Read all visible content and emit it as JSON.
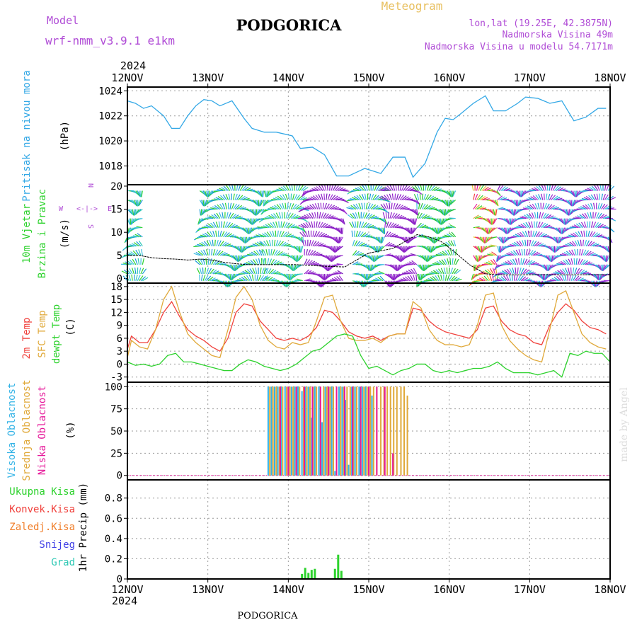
{
  "header": {
    "model_label": "Model",
    "model_name": "wrf-nmm_v3.9.1 e1km",
    "city": "PODGORICA",
    "meteogram_label": "Meteogram",
    "coords": "lon,lat (19.25E, 42.3875N)",
    "altitude": "Nadmorska Visina 49m",
    "model_altitude": "Nadmorska Visina u modelu 54.7171m"
  },
  "footer": {
    "city": "PODGORICA",
    "watermark": "made by Angel"
  },
  "colors": {
    "pressure": "#33a8e6",
    "t2m": "#f0413c",
    "sfc": "#e0a93a",
    "dewpt": "#2dd22d",
    "high_cloud": "#33b3e6",
    "mid_cloud": "#e0a93a",
    "low_cloud": "#e6199a",
    "total_precip": "#2dd22d",
    "conv_precip": "#f0413c",
    "frz_precip": "#f07d28",
    "snow": "#4040e6",
    "hail": "#2dc8b4",
    "wind_speed": "#000000",
    "purple_text": "#b04cd6",
    "meteogram_text": "#e8c060"
  },
  "xaxis": {
    "year_top": "2024",
    "year_bottom": "2024",
    "ticks": [
      "12NOV",
      "13NOV",
      "14NOV",
      "15NOV",
      "16NOV",
      "17NOV",
      "18NOV"
    ]
  },
  "chart_data": [
    {
      "type": "line",
      "ylabel": [
        "Pritisak na nivou mora",
        "(hPa)"
      ],
      "ylim": [
        1016.5,
        1024.3
      ],
      "yticks": [
        1018,
        1020,
        1022,
        1024
      ],
      "xlim": [
        0,
        6
      ],
      "series": [
        {
          "key": "pressure",
          "color_key": "pressure",
          "x": [
            0,
            0.1,
            0.2,
            0.3,
            0.45,
            0.55,
            0.65,
            0.75,
            0.85,
            0.95,
            1.05,
            1.15,
            1.3,
            1.45,
            1.55,
            1.7,
            1.85,
            2.05,
            2.15,
            2.3,
            2.45,
            2.6,
            2.75,
            2.95,
            3.05,
            3.15,
            3.3,
            3.45,
            3.55,
            3.7,
            3.85,
            3.95,
            4.05,
            4.15,
            4.3,
            4.45,
            4.55,
            4.7,
            4.85,
            4.95,
            5.1,
            5.25,
            5.4,
            5.55,
            5.7,
            5.85,
            5.95
          ],
          "y": [
            1023.2,
            1023.0,
            1022.6,
            1022.8,
            1022.0,
            1021.0,
            1021.0,
            1022.0,
            1022.8,
            1023.3,
            1023.2,
            1022.8,
            1023.2,
            1021.8,
            1021.0,
            1020.7,
            1020.7,
            1020.4,
            1019.4,
            1019.5,
            1018.9,
            1017.2,
            1017.2,
            1017.8,
            1017.6,
            1017.4,
            1018.7,
            1018.7,
            1017.1,
            1018.2,
            1020.7,
            1021.8,
            1021.7,
            1022.2,
            1023.0,
            1023.6,
            1022.4,
            1022.4,
            1023.0,
            1023.5,
            1023.4,
            1023.0,
            1023.2,
            1021.6,
            1021.9,
            1022.6,
            1022.6
          ]
        }
      ]
    },
    {
      "type": "scatter",
      "ylabel": [
        "10m Vjetar",
        "Brzina i Pravac",
        "(m/s)"
      ],
      "compass": [
        "N",
        "<-|->",
        "W",
        "E",
        "S"
      ],
      "ylim": [
        -1,
        20.3
      ],
      "yticks": [
        0,
        5,
        10,
        15,
        20
      ],
      "xlim": [
        0,
        6
      ],
      "series": [
        {
          "key": "wind_speed",
          "name": "10m speed",
          "color_key": "wind_speed",
          "x": [
            0,
            0.15,
            0.3,
            0.45,
            0.6,
            0.75,
            0.9,
            1.05,
            1.2,
            1.35,
            1.5,
            1.8,
            2.1,
            2.4,
            2.7,
            2.85,
            3.0,
            3.15,
            3.3,
            3.45,
            3.6,
            3.75,
            3.9,
            4.05,
            4.25,
            4.45,
            4.6,
            4.8,
            5.0,
            5.2,
            5.4,
            5.6,
            5.8,
            6.0
          ],
          "y": [
            5,
            5,
            4.5,
            4.3,
            4.2,
            4.0,
            4.2,
            4.0,
            3.5,
            3.2,
            3.0,
            3.0,
            3.0,
            2.7,
            2.5,
            4,
            5.5,
            6.0,
            6.5,
            8.0,
            9.5,
            9.0,
            8.0,
            6.0,
            3.0,
            1.0,
            0.8,
            0.8,
            0.8,
            0.8,
            0.8,
            0.8,
            0.8,
            0.8
          ]
        }
      ],
      "wind_barbs": {
        "blocks": [
          [
            0,
            0.2
          ],
          [
            0.9,
            1.7
          ],
          [
            1.7,
            2.2
          ],
          [
            2.2,
            2.7
          ],
          [
            2.8,
            3.2
          ],
          [
            3.2,
            3.6
          ],
          [
            3.6,
            4.1
          ],
          [
            4.3,
            4.6
          ],
          [
            4.6,
            6.0
          ]
        ],
        "columns_per_day": 48,
        "rows": [
          19,
          17,
          15,
          13,
          11,
          9,
          7,
          5,
          3,
          1,
          -0.5
        ]
      }
    },
    {
      "type": "line",
      "ylabel": [
        "2m Temp",
        "SFC Temp",
        "dewpt Temp",
        "(C)"
      ],
      "ylim": [
        -4.2,
        18.8
      ],
      "yticks": [
        -3,
        0,
        3,
        6,
        9,
        12,
        15,
        18
      ],
      "xlim": [
        0,
        6
      ],
      "series": [
        {
          "key": "t2m",
          "color_key": "t2m",
          "x": [
            0,
            0.05,
            0.15,
            0.25,
            0.35,
            0.45,
            0.55,
            0.65,
            0.75,
            0.85,
            0.95,
            1.05,
            1.15,
            1.25,
            1.35,
            1.45,
            1.55,
            1.65,
            1.75,
            1.85,
            1.95,
            2.05,
            2.15,
            2.25,
            2.35,
            2.45,
            2.55,
            2.65,
            2.75,
            2.85,
            2.95,
            3.05,
            3.15,
            3.25,
            3.35,
            3.45,
            3.55,
            3.65,
            3.75,
            3.85,
            3.95,
            4.05,
            4.15,
            4.25,
            4.35,
            4.45,
            4.55,
            4.65,
            4.75,
            4.85,
            4.95,
            5.05,
            5.15,
            5.25,
            5.35,
            5.45,
            5.55,
            5.65,
            5.75,
            5.85,
            5.95
          ],
          "y": [
            3.5,
            6.5,
            5.0,
            5.0,
            8.0,
            12.0,
            14.5,
            11.0,
            8.0,
            6.5,
            5.5,
            4.0,
            3.0,
            6.0,
            12.0,
            14.0,
            13.5,
            10.0,
            8.0,
            6.0,
            5.5,
            6.0,
            5.5,
            6.5,
            8.5,
            12.5,
            12.0,
            10.0,
            7.5,
            6.5,
            6.0,
            6.5,
            5.5,
            6.5,
            7.0,
            7.0,
            13.0,
            12.5,
            10.0,
            8.5,
            7.5,
            7.0,
            6.5,
            6.0,
            8.0,
            13.0,
            13.5,
            10.0,
            8.0,
            7.0,
            6.5,
            5.0,
            4.5,
            9.0,
            12.0,
            14.0,
            12.5,
            10.0,
            8.5,
            8.0,
            7.0
          ]
        },
        {
          "key": "sfc",
          "color_key": "sfc",
          "x": [
            0,
            0.05,
            0.15,
            0.25,
            0.35,
            0.45,
            0.55,
            0.65,
            0.75,
            0.85,
            0.95,
            1.05,
            1.15,
            1.25,
            1.35,
            1.45,
            1.55,
            1.65,
            1.75,
            1.85,
            1.95,
            2.05,
            2.15,
            2.25,
            2.35,
            2.45,
            2.55,
            2.65,
            2.75,
            2.85,
            2.95,
            3.05,
            3.15,
            3.25,
            3.35,
            3.45,
            3.55,
            3.65,
            3.75,
            3.85,
            3.95,
            4.05,
            4.15,
            4.25,
            4.35,
            4.45,
            4.55,
            4.65,
            4.75,
            4.85,
            4.95,
            5.05,
            5.15,
            5.25,
            5.35,
            5.45,
            5.55,
            5.65,
            5.75,
            5.85,
            5.95
          ],
          "y": [
            1.5,
            5.5,
            4.0,
            3.5,
            8.0,
            15.0,
            18.0,
            12.0,
            7.0,
            5.0,
            3.5,
            2.0,
            1.5,
            8.0,
            15.5,
            18.0,
            15.0,
            9.0,
            5.5,
            4.0,
            3.5,
            5.0,
            4.5,
            5.0,
            10.0,
            15.5,
            16.0,
            10.0,
            6.0,
            5.5,
            5.5,
            6.0,
            5.0,
            6.5,
            7.0,
            7.0,
            14.5,
            13.0,
            8.0,
            5.5,
            4.5,
            4.5,
            4.0,
            4.5,
            9.0,
            16.0,
            16.5,
            9.0,
            5.5,
            3.5,
            2.0,
            1.0,
            0.5,
            8.0,
            16.0,
            17.0,
            12.0,
            7.0,
            5.0,
            4.0,
            3.5
          ]
        },
        {
          "key": "dewpt",
          "color_key": "dewpt",
          "x": [
            0,
            0.1,
            0.2,
            0.3,
            0.4,
            0.5,
            0.6,
            0.7,
            0.8,
            0.9,
            1.0,
            1.1,
            1.2,
            1.3,
            1.4,
            1.5,
            1.6,
            1.7,
            1.8,
            1.9,
            2.0,
            2.1,
            2.2,
            2.3,
            2.4,
            2.5,
            2.6,
            2.7,
            2.8,
            2.9,
            3.0,
            3.1,
            3.2,
            3.3,
            3.4,
            3.5,
            3.6,
            3.7,
            3.8,
            3.9,
            4.0,
            4.1,
            4.2,
            4.3,
            4.4,
            4.5,
            4.6,
            4.7,
            4.8,
            4.9,
            5.0,
            5.1,
            5.2,
            5.3,
            5.4,
            5.5,
            5.6,
            5.7,
            5.8,
            5.9,
            6.0
          ],
          "y": [
            0.5,
            -0.3,
            0.0,
            -0.5,
            0.0,
            2.0,
            2.5,
            0.5,
            0.5,
            0.0,
            -0.5,
            -1.0,
            -1.5,
            -1.5,
            0.0,
            1.0,
            0.5,
            -0.5,
            -1.0,
            -1.5,
            -1.0,
            0.0,
            1.5,
            3.0,
            3.5,
            5.0,
            6.5,
            7.0,
            6.5,
            2.0,
            -1.0,
            -0.5,
            -1.5,
            -2.5,
            -1.5,
            -1.0,
            0.0,
            0.0,
            -1.5,
            -2.0,
            -1.5,
            -2.0,
            -1.5,
            -1.0,
            -1.0,
            -0.5,
            0.5,
            -1.0,
            -2.0,
            -2.0,
            -2.0,
            -2.5,
            -2.0,
            -1.5,
            -3.0,
            2.5,
            2.0,
            3.0,
            2.5,
            2.5,
            0.5
          ]
        }
      ]
    },
    {
      "type": "bar",
      "ylabel": [
        "Visoka Oblacnost",
        "Srednja Oblacnost",
        "Niska Oblacnost",
        "(%)"
      ],
      "ylim": [
        -5,
        105
      ],
      "yticks": [
        0,
        25,
        50,
        75,
        100
      ],
      "xlim": [
        0,
        6
      ],
      "series": [
        {
          "key": "high_cloud",
          "color_key": "high_cloud",
          "x": [
            1.75,
            1.79,
            1.83,
            1.87,
            1.91,
            1.96,
            2.0,
            2.04,
            2.08,
            2.12,
            2.17,
            2.21,
            2.25,
            2.29,
            2.33,
            2.38,
            2.42,
            2.46,
            2.5,
            2.54,
            2.58,
            2.63,
            2.67,
            2.71,
            2.75,
            2.79,
            2.83,
            2.88,
            2.92,
            2.96,
            3.0,
            3.04
          ],
          "values": [
            100,
            100,
            100,
            100,
            100,
            100,
            100,
            100,
            100,
            100,
            95,
            100,
            100,
            65,
            100,
            100,
            60,
            100,
            100,
            100,
            5,
            100,
            100,
            85,
            12,
            100,
            100,
            100,
            100,
            100,
            100,
            90
          ]
        },
        {
          "key": "mid_cloud",
          "color_key": "mid_cloud",
          "x": [
            1.77,
            1.81,
            1.85,
            1.89,
            1.93,
            1.98,
            2.02,
            2.06,
            2.1,
            2.14,
            2.19,
            2.23,
            2.27,
            2.31,
            2.35,
            2.4,
            2.44,
            2.48,
            2.52,
            2.56,
            2.6,
            2.65,
            2.69,
            2.73,
            2.77,
            2.81,
            2.85,
            2.9,
            2.94,
            2.98,
            3.02,
            3.06,
            3.1,
            3.15,
            3.19,
            3.23,
            3.27,
            3.31,
            3.35,
            3.4,
            3.44,
            3.48
          ],
          "values": [
            100,
            100,
            100,
            100,
            100,
            100,
            100,
            100,
            100,
            100,
            100,
            100,
            100,
            100,
            100,
            100,
            100,
            100,
            100,
            100,
            100,
            100,
            100,
            100,
            100,
            100,
            100,
            100,
            100,
            100,
            100,
            100,
            100,
            100,
            100,
            100,
            100,
            100,
            100,
            100,
            100,
            90
          ]
        },
        {
          "key": "low_cloud",
          "color_key": "low_cloud",
          "x": [
            1.9,
            2.0,
            2.1,
            2.2,
            2.3,
            2.4,
            2.5,
            2.6,
            2.7,
            2.8,
            2.9,
            3.0,
            3.1,
            3.2,
            3.3
          ],
          "values": [
            100,
            100,
            100,
            100,
            100,
            100,
            100,
            100,
            100,
            100,
            100,
            100,
            100,
            100,
            25
          ]
        }
      ]
    },
    {
      "type": "bar",
      "ylabel": [
        "1hr Precip (mm)"
      ],
      "legend": [
        "Ukupna Kisa",
        "Konvek.Kisa",
        "Zaledj.Kisa",
        "Snijeg",
        "Grad"
      ],
      "ylim": [
        0,
        0.98
      ],
      "yticks": [
        0,
        0.2,
        0.4,
        0.6,
        0.8
      ],
      "xlim": [
        0,
        6
      ],
      "series": [
        {
          "key": "total_precip",
          "color_key": "total_precip",
          "x": [
            2.17,
            2.21,
            2.25,
            2.29,
            2.33,
            2.58,
            2.62,
            2.66
          ],
          "values": [
            0.05,
            0.11,
            0.06,
            0.09,
            0.1,
            0.1,
            0.24,
            0.08
          ]
        }
      ]
    }
  ]
}
